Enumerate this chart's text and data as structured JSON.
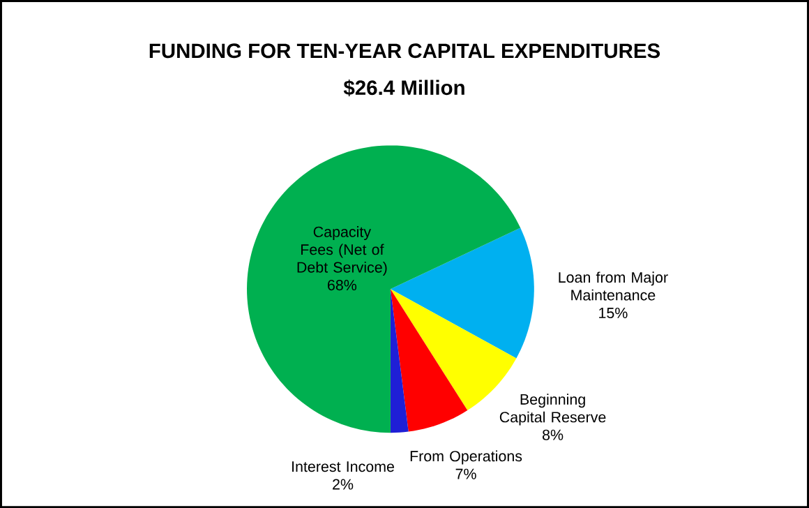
{
  "chart_data": {
    "type": "pie",
    "title": "FUNDING  FOR  TEN-YEAR CAPITAL  EXPENDITURES",
    "subtitle": "$26.4 Million",
    "categories": [
      "Loan from Major Maintenance",
      "Beginning Capital Reserve",
      "From Operations",
      "Interest Income",
      "Capacity Fees (Net of Debt Service)"
    ],
    "values": [
      15,
      8,
      7,
      2,
      68
    ],
    "value_labels": [
      "15%",
      "8%",
      "7%",
      "2%",
      "68%"
    ],
    "colors": [
      "#00b0f0",
      "#ffff00",
      "#ff0000",
      "#1f1fd6",
      "#00b050"
    ]
  }
}
